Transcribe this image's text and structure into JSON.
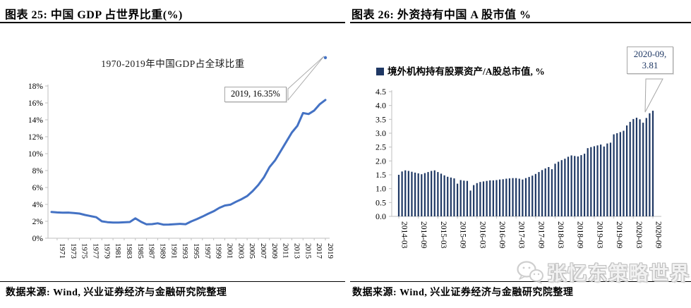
{
  "left": {
    "header": "图表 25: 中国 GDP 占世界比重(%)",
    "chart_title": "1970-2019年中国GDP占全球比重",
    "callout": "2019, 16.35%",
    "source": "数据来源: Wind, 兴业证券经济与金融研究院整理"
  },
  "right": {
    "header": "图表 26: 外资持有中国 A 股市值 %",
    "legend": "境外机构持有股票资产/A股总市值, %",
    "callout_line1": "2020-09,",
    "callout_line2": "3.81",
    "source": "数据来源: Wind, 兴业证券经济与金融研究院整理"
  },
  "watermark": {
    "text": "张忆东策略世界",
    "icon": "wechat-icon"
  },
  "colors": {
    "line": "#4472C4",
    "bar": "#1F3864",
    "axis": "#BFBFBF",
    "tick_text": "#000000",
    "callout_border": "#A6A6A6",
    "legend_swatch": "#1F3864"
  },
  "chart_data": [
    {
      "type": "line",
      "title": "1970-2019年中国GDP占全球比重",
      "x": [
        1970,
        1971,
        1972,
        1973,
        1974,
        1975,
        1976,
        1977,
        1978,
        1979,
        1980,
        1981,
        1982,
        1983,
        1984,
        1985,
        1986,
        1987,
        1988,
        1989,
        1990,
        1991,
        1992,
        1993,
        1994,
        1995,
        1996,
        1997,
        1998,
        1999,
        2000,
        2001,
        2002,
        2003,
        2004,
        2005,
        2006,
        2007,
        2008,
        2009,
        2010,
        2011,
        2012,
        2013,
        2014,
        2015,
        2016,
        2017,
        2018,
        2019
      ],
      "values": [
        3.1,
        3.05,
        3.02,
        3.03,
        2.98,
        2.92,
        2.75,
        2.62,
        2.48,
        2.0,
        1.9,
        1.86,
        1.86,
        1.88,
        1.92,
        2.35,
        1.95,
        1.64,
        1.67,
        1.77,
        1.61,
        1.62,
        1.66,
        1.7,
        1.66,
        1.99,
        2.26,
        2.56,
        2.88,
        3.18,
        3.58,
        3.87,
        3.97,
        4.31,
        4.62,
        4.98,
        5.58,
        6.3,
        7.2,
        8.4,
        9.2,
        10.3,
        11.4,
        12.5,
        13.3,
        14.8,
        14.68,
        15.1,
        15.85,
        16.35
      ],
      "ylim": [
        0,
        18
      ],
      "ytick_labels": [
        "0%",
        "2%",
        "4%",
        "6%",
        "8%",
        "10%",
        "12%",
        "14%",
        "16%",
        "18%"
      ],
      "xtick_labels": [
        "1971",
        "1973",
        "1975",
        "1977",
        "1979",
        "1981",
        "1983",
        "1985",
        "1987",
        "1989",
        "1991",
        "1993",
        "1995",
        "1997",
        "1999",
        "2001",
        "2003",
        "2005",
        "2007",
        "2009",
        "2011",
        "2013",
        "2015",
        "2017",
        "2019"
      ],
      "grid": false,
      "legend_position": "none",
      "annotation": {
        "text": "2019, 16.35%",
        "x": 2019,
        "y": 16.35
      }
    },
    {
      "type": "bar",
      "series_name": "境外机构持有股票资产/A股总市值, %",
      "categories": [
        "2014-03",
        "2014-04",
        "2014-05",
        "2014-06",
        "2014-07",
        "2014-08",
        "2014-09",
        "2014-10",
        "2014-11",
        "2014-12",
        "2015-01",
        "2015-02",
        "2015-03",
        "2015-04",
        "2015-05",
        "2015-06",
        "2015-07",
        "2015-08",
        "2015-09",
        "2015-10",
        "2015-11",
        "2015-12",
        "2016-01",
        "2016-02",
        "2016-03",
        "2016-04",
        "2016-05",
        "2016-06",
        "2016-07",
        "2016-08",
        "2016-09",
        "2016-10",
        "2016-11",
        "2016-12",
        "2017-01",
        "2017-02",
        "2017-03",
        "2017-04",
        "2017-05",
        "2017-06",
        "2017-07",
        "2017-08",
        "2017-09",
        "2017-10",
        "2017-11",
        "2017-12",
        "2018-01",
        "2018-02",
        "2018-03",
        "2018-04",
        "2018-05",
        "2018-06",
        "2018-07",
        "2018-08",
        "2018-09",
        "2018-10",
        "2018-11",
        "2018-12",
        "2019-01",
        "2019-02",
        "2019-03",
        "2019-04",
        "2019-05",
        "2019-06",
        "2019-07",
        "2019-08",
        "2019-09",
        "2019-10",
        "2019-11",
        "2019-12",
        "2020-01",
        "2020-02",
        "2020-03",
        "2020-04",
        "2020-05",
        "2020-06",
        "2020-07",
        "2020-08",
        "2020-09"
      ],
      "values": [
        1.5,
        1.62,
        1.66,
        1.64,
        1.61,
        1.58,
        1.55,
        1.52,
        1.56,
        1.6,
        1.64,
        1.66,
        1.6,
        1.54,
        1.48,
        1.43,
        1.4,
        1.37,
        1.18,
        1.31,
        1.29,
        1.28,
        0.93,
        1.13,
        1.2,
        1.24,
        1.26,
        1.28,
        1.3,
        1.3,
        1.31,
        1.33,
        1.34,
        1.36,
        1.37,
        1.38,
        1.38,
        1.36,
        1.33,
        1.38,
        1.42,
        1.47,
        1.53,
        1.6,
        1.67,
        1.73,
        1.78,
        1.7,
        1.9,
        1.97,
        2.03,
        2.08,
        2.15,
        2.2,
        2.18,
        2.16,
        2.21,
        2.26,
        2.46,
        2.5,
        2.53,
        2.56,
        2.59,
        2.52,
        2.63,
        2.66,
        2.96,
        3.0,
        3.04,
        3.09,
        3.28,
        3.41,
        3.51,
        3.56,
        3.5,
        3.38,
        3.55,
        3.72,
        3.81
      ],
      "ylim": [
        0,
        4.5
      ],
      "ytick_labels": [
        "0.0",
        "0.5",
        "1.0",
        "1.5",
        "2.0",
        "2.5",
        "3.0",
        "3.5",
        "4.0",
        "4.5"
      ],
      "xtick_every": 6,
      "grid": false,
      "legend_position": "top",
      "annotation": {
        "text": "2020-09, 3.81",
        "x": "2020-09",
        "y": 3.81
      }
    }
  ]
}
